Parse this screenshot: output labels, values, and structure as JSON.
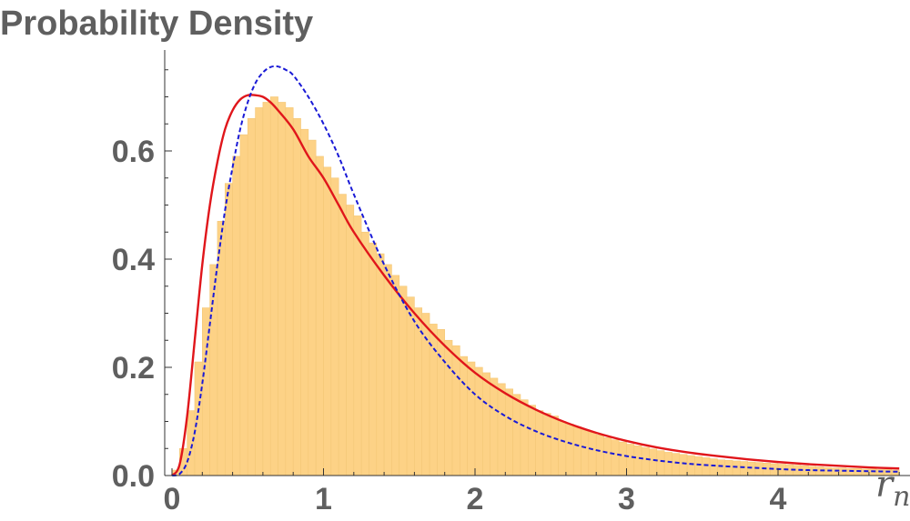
{
  "chart_data": {
    "type": "bar",
    "title": "Probability Density",
    "xlabel_main": "r",
    "xlabel_sub": "n",
    "xlim": [
      0,
      4.8
    ],
    "ylim": [
      0,
      0.76
    ],
    "x_ticks": [
      0,
      1,
      2,
      3,
      4
    ],
    "y_ticks": [
      0.0,
      0.2,
      0.4,
      0.6
    ],
    "x_ticks_text": [
      "0",
      "1",
      "2",
      "3",
      "4"
    ],
    "y_ticks_text": [
      "0.0",
      "0.2",
      "0.4",
      "0.6"
    ],
    "histogram": {
      "bin_width": 0.05,
      "x_start": 0,
      "values": [
        0.01,
        0.05,
        0.12,
        0.21,
        0.31,
        0.39,
        0.47,
        0.54,
        0.59,
        0.63,
        0.66,
        0.68,
        0.69,
        0.7,
        0.69,
        0.68,
        0.66,
        0.64,
        0.62,
        0.59,
        0.57,
        0.55,
        0.52,
        0.5,
        0.48,
        0.45,
        0.43,
        0.41,
        0.39,
        0.37,
        0.35,
        0.33,
        0.31,
        0.3,
        0.28,
        0.27,
        0.25,
        0.24,
        0.22,
        0.21,
        0.2,
        0.19,
        0.18,
        0.17,
        0.16,
        0.15,
        0.14,
        0.13,
        0.12,
        0.115,
        0.11,
        0.1,
        0.095,
        0.09,
        0.085,
        0.08,
        0.075,
        0.07,
        0.066,
        0.062,
        0.058,
        0.055,
        0.052,
        0.049,
        0.046,
        0.043,
        0.041,
        0.039,
        0.037,
        0.035,
        0.033,
        0.031,
        0.029,
        0.028,
        0.027,
        0.026,
        0.025,
        0.024,
        0.023,
        0.022,
        0.021,
        0.02,
        0.019,
        0.018,
        0.017,
        0.016,
        0.015,
        0.014,
        0.014,
        0.013,
        0.013,
        0.012,
        0.012,
        0.011,
        0.011,
        0.01
      ],
      "fill": "#fdd286",
      "edge": "#f3c777"
    },
    "series": [
      {
        "style": "solid",
        "color": "#e0161b",
        "x": [
          0,
          0.05,
          0.1,
          0.15,
          0.2,
          0.25,
          0.3,
          0.35,
          0.4,
          0.45,
          0.5,
          0.55,
          0.6,
          0.65,
          0.7,
          0.8,
          0.9,
          1.0,
          1.1,
          1.2,
          1.4,
          1.6,
          1.8,
          2.0,
          2.2,
          2.4,
          2.6,
          2.8,
          3.0,
          3.2,
          3.4,
          3.6,
          3.8,
          4.0,
          4.2,
          4.4,
          4.6,
          4.8
        ],
        "y": [
          0,
          0.02,
          0.11,
          0.25,
          0.39,
          0.5,
          0.58,
          0.64,
          0.675,
          0.695,
          0.703,
          0.703,
          0.7,
          0.69,
          0.675,
          0.64,
          0.59,
          0.55,
          0.5,
          0.45,
          0.37,
          0.3,
          0.24,
          0.19,
          0.152,
          0.122,
          0.098,
          0.079,
          0.064,
          0.052,
          0.043,
          0.036,
          0.03,
          0.025,
          0.021,
          0.018,
          0.015,
          0.013
        ]
      },
      {
        "style": "dashed",
        "color": "#1a1ad6",
        "x": [
          0,
          0.05,
          0.1,
          0.15,
          0.2,
          0.25,
          0.3,
          0.35,
          0.4,
          0.45,
          0.5,
          0.55,
          0.6,
          0.65,
          0.7,
          0.75,
          0.8,
          0.9,
          1.0,
          1.1,
          1.2,
          1.4,
          1.6,
          1.8,
          2.0,
          2.2,
          2.4,
          2.6,
          2.8,
          3.0,
          3.2,
          3.4,
          3.6,
          3.8,
          4.0,
          4.2,
          4.4,
          4.6,
          4.8
        ],
        "y": [
          0,
          0.003,
          0.025,
          0.08,
          0.17,
          0.28,
          0.39,
          0.49,
          0.57,
          0.64,
          0.69,
          0.725,
          0.745,
          0.755,
          0.756,
          0.75,
          0.74,
          0.7,
          0.65,
          0.59,
          0.52,
          0.39,
          0.285,
          0.21,
          0.15,
          0.11,
          0.082,
          0.062,
          0.047,
          0.036,
          0.028,
          0.022,
          0.018,
          0.015,
          0.012,
          0.01,
          0.009,
          0.008,
          0.007
        ]
      }
    ]
  }
}
